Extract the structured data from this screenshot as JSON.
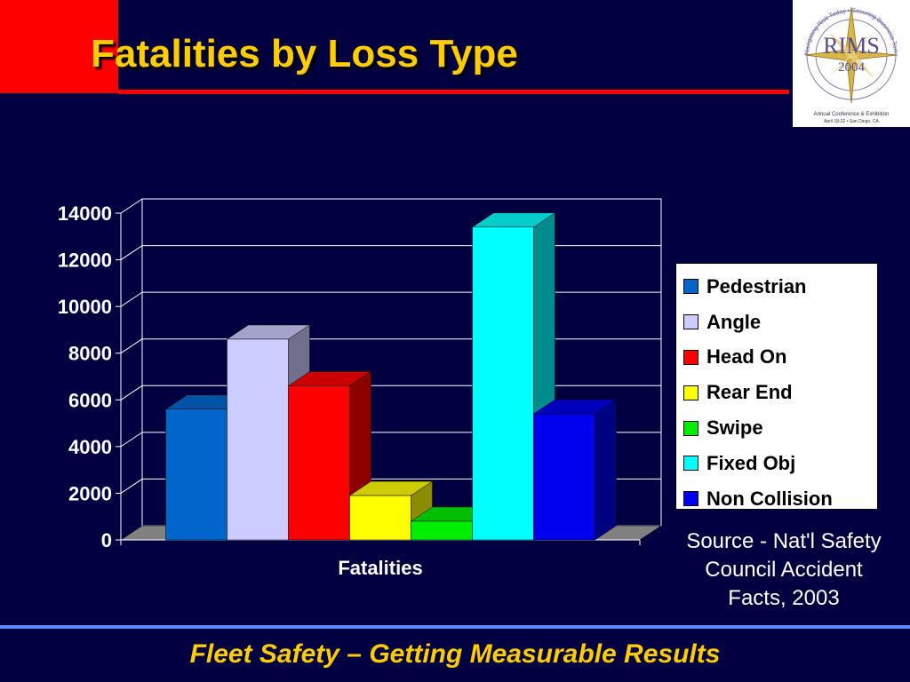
{
  "slide": {
    "title": "Fatalities by Loss Type",
    "footer": "Fleet Safety – Getting Measurable Results",
    "source_lines": [
      "Source - Nat'l Safety",
      "Council Accident",
      "Facts, 2003"
    ]
  },
  "logo": {
    "brand": "RIMS",
    "year": "2004",
    "ring_text": "Navigating Risk Today • Securing Business Tomorrow",
    "caption_line1": "Annual Conference & Exhibition",
    "caption_line2": "April 18-22 • San Diego, CA"
  },
  "colors": {
    "background": "#000040",
    "title": "#ffcc00",
    "accent_red": "#ff0000",
    "rule_blue": "#5b8cff"
  },
  "chart_data": {
    "type": "bar",
    "style": "3d-clustered-column",
    "title": "",
    "xlabel": "",
    "ylabel": "",
    "categories": [
      "Fatalities"
    ],
    "ylim": [
      0,
      14000
    ],
    "yticks": [
      0,
      2000,
      4000,
      6000,
      8000,
      10000,
      12000,
      14000
    ],
    "grid": true,
    "legend_position": "right",
    "series": [
      {
        "name": "Pedestrian",
        "value": 5600,
        "color": "#0066cc"
      },
      {
        "name": "Angle",
        "value": 8600,
        "color": "#ccccff"
      },
      {
        "name": "Head On",
        "value": 6600,
        "color": "#ff0000"
      },
      {
        "name": "Rear End",
        "value": 1900,
        "color": "#ffff00"
      },
      {
        "name": "Swipe",
        "value": 800,
        "color": "#00ee00"
      },
      {
        "name": "Fixed Obj",
        "value": 13400,
        "color": "#00ffff"
      },
      {
        "name": "Non Collision",
        "value": 5400,
        "color": "#0000ee"
      }
    ]
  }
}
